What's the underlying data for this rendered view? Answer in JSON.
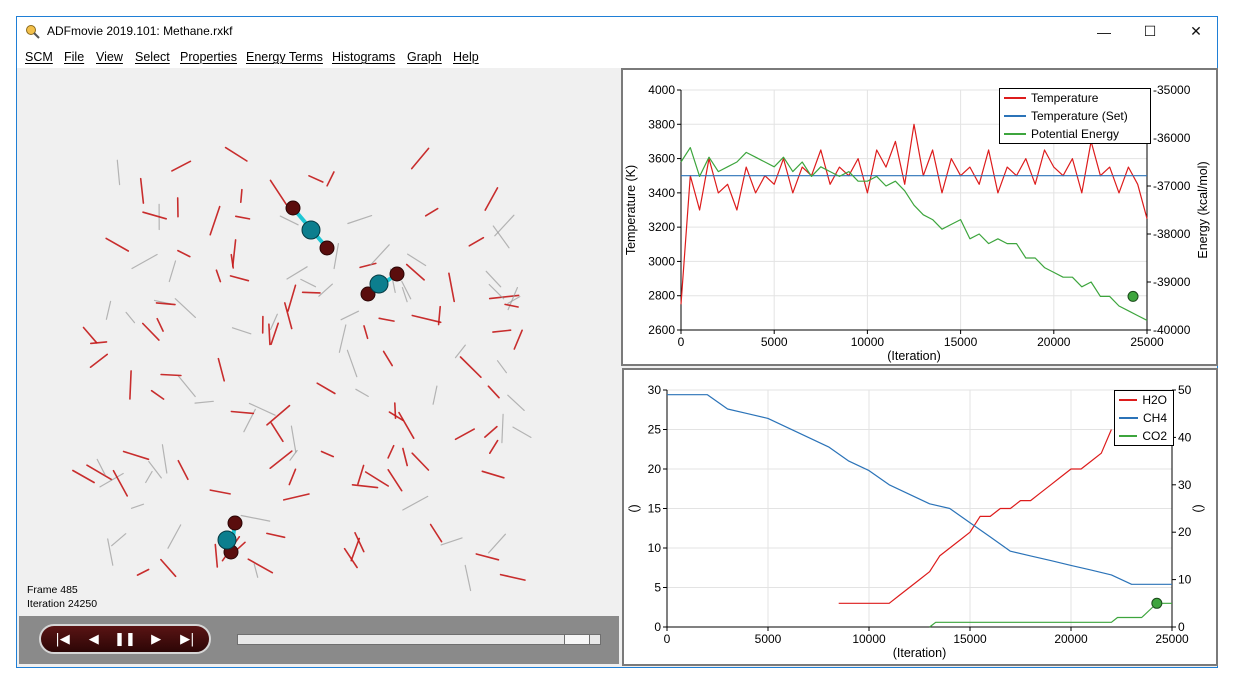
{
  "window": {
    "title": "ADFmovie 2019.101: Methane.rxkf",
    "minimize_glyph": "—",
    "maximize_glyph": "☐",
    "close_glyph": "✕"
  },
  "menu": [
    "SCM",
    "File",
    "View",
    "Select",
    "Properties",
    "Energy Terms",
    "Histograms",
    "Graph",
    "Help"
  ],
  "viewer": {
    "frame_label": "Frame 485",
    "iteration_label": "Iteration 24250"
  },
  "playback": {
    "buttons": [
      "first-frame",
      "previous-frame",
      "pause",
      "next-frame",
      "last-frame"
    ],
    "glyphs": [
      "|◀",
      "◀",
      "❚❚",
      "▶",
      "▶|"
    ],
    "position_fraction": 0.97
  },
  "colors": {
    "temperature": "#dd1c1c",
    "temperature_set": "#2b73b8",
    "potential_energy": "#3da53d",
    "h2o": "#dd1c1c",
    "ch4": "#2b73b8",
    "co2": "#3da53d",
    "accent": "#1f7fd6"
  },
  "chart_data": [
    {
      "type": "line",
      "xlabel": "(Iteration)",
      "ylabel": "Temperature (K)",
      "y2label": "Energy (kcal/mol)",
      "xlim": [
        0,
        25000
      ],
      "ylim": [
        2600,
        4000
      ],
      "y2lim": [
        -40000,
        -35000
      ],
      "x_ticks": [
        "0",
        "5000",
        "10000",
        "15000",
        "20000",
        "25000"
      ],
      "y_ticks": [
        "2600",
        "2800",
        "3000",
        "3200",
        "3400",
        "3600",
        "3800",
        "4000"
      ],
      "y2_ticks": [
        "-40000",
        "-39000",
        "-38000",
        "-37000",
        "-36000",
        "-35000"
      ],
      "legend_position": "top-right",
      "grid": true,
      "series": [
        {
          "name": "Temperature",
          "axis": "left",
          "x": [
            0,
            500,
            1000,
            1500,
            2000,
            2500,
            3000,
            3500,
            4000,
            4500,
            5000,
            5500,
            6000,
            6500,
            7000,
            7500,
            8000,
            8500,
            9000,
            9500,
            10000,
            10500,
            11000,
            11500,
            12000,
            12500,
            13000,
            13500,
            14000,
            14500,
            15000,
            15500,
            16000,
            16500,
            17000,
            17500,
            18000,
            18500,
            19000,
            19500,
            20000,
            20500,
            21000,
            21500,
            22000,
            22500,
            23000,
            23500,
            24000,
            24500,
            25000
          ],
          "values": [
            2750,
            3500,
            3300,
            3600,
            3400,
            3450,
            3300,
            3550,
            3400,
            3500,
            3450,
            3600,
            3400,
            3550,
            3500,
            3650,
            3450,
            3550,
            3500,
            3600,
            3400,
            3650,
            3550,
            3700,
            3450,
            3800,
            3500,
            3650,
            3400,
            3600,
            3500,
            3550,
            3450,
            3650,
            3400,
            3550,
            3500,
            3600,
            3450,
            3650,
            3550,
            3500,
            3600,
            3400,
            3700,
            3500,
            3550,
            3400,
            3550,
            3450,
            3250
          ]
        },
        {
          "name": "Temperature (Set)",
          "axis": "left",
          "x": [
            0,
            25000
          ],
          "values": [
            3500,
            3500
          ]
        },
        {
          "name": "Potential Energy",
          "axis": "right",
          "x": [
            0,
            500,
            1000,
            1500,
            2000,
            2500,
            3000,
            3500,
            4000,
            4500,
            5000,
            5500,
            6000,
            6500,
            7000,
            7500,
            8000,
            8500,
            9000,
            9500,
            10000,
            10500,
            11000,
            11500,
            12000,
            12500,
            13000,
            13500,
            14000,
            14500,
            15000,
            15500,
            16000,
            16500,
            17000,
            17500,
            18000,
            18500,
            19000,
            19500,
            20000,
            20500,
            21000,
            21500,
            22000,
            22500,
            23000,
            23500,
            24000,
            24500,
            25000
          ],
          "values": [
            -36500,
            -36200,
            -36800,
            -36400,
            -36700,
            -36600,
            -36500,
            -36300,
            -36400,
            -36500,
            -36600,
            -36400,
            -36700,
            -36500,
            -36800,
            -36600,
            -36700,
            -36800,
            -36700,
            -36900,
            -36900,
            -36800,
            -37000,
            -36900,
            -37100,
            -37400,
            -37600,
            -37700,
            -37900,
            -37800,
            -37700,
            -38100,
            -38000,
            -38200,
            -38100,
            -38200,
            -38200,
            -38500,
            -38500,
            -38700,
            -38800,
            -38900,
            -38900,
            -39100,
            -39000,
            -39300,
            -39300,
            -39500,
            -39600,
            -39700,
            -39800
          ]
        }
      ],
      "current_point": {
        "x": 24250,
        "y": -39300
      }
    },
    {
      "type": "line",
      "xlabel": "(Iteration)",
      "ylabel": "()",
      "y2label": "()",
      "xlim": [
        0,
        25000
      ],
      "ylim": [
        0,
        30
      ],
      "y2lim": [
        0,
        50
      ],
      "x_ticks": [
        "0",
        "5000",
        "10000",
        "15000",
        "20000",
        "25000"
      ],
      "y_ticks": [
        "0",
        "5",
        "10",
        "15",
        "20",
        "25",
        "30"
      ],
      "y2_ticks": [
        "0",
        "10",
        "20",
        "30",
        "40",
        "50"
      ],
      "legend_position": "top-right",
      "grid": true,
      "series": [
        {
          "name": "H2O",
          "axis": "left",
          "x": [
            8500,
            9000,
            9500,
            10000,
            10500,
            11000,
            11500,
            12000,
            12500,
            13000,
            13500,
            14000,
            14500,
            15000,
            15500,
            16000,
            16500,
            17000,
            17500,
            18000,
            18500,
            19000,
            19500,
            20000,
            20500,
            21000,
            21500,
            22000
          ],
          "values": [
            3,
            3,
            3,
            3,
            3,
            3,
            4,
            5,
            6,
            7,
            9,
            10,
            11,
            12,
            14,
            14,
            15,
            15,
            16,
            16,
            17,
            18,
            19,
            20,
            20,
            21,
            22,
            25
          ]
        },
        {
          "name": "CH4",
          "axis": "right",
          "x": [
            0,
            1000,
            2000,
            3000,
            4000,
            5000,
            6000,
            7000,
            8000,
            9000,
            10000,
            11000,
            12000,
            13000,
            14000,
            15000,
            16000,
            17000,
            18000,
            19000,
            20000,
            21000,
            22000,
            23000,
            24000,
            25000
          ],
          "values": [
            49,
            49,
            49,
            46,
            45,
            44,
            42,
            40,
            38,
            35,
            33,
            30,
            28,
            26,
            25,
            22,
            19,
            16,
            15,
            14,
            13,
            12,
            11,
            9,
            9,
            9
          ]
        },
        {
          "name": "CO2",
          "axis": "right",
          "x": [
            13000,
            13300,
            21000,
            22000,
            22300,
            23500,
            24000,
            24250,
            25000
          ],
          "values": [
            0,
            1,
            1,
            1,
            2,
            2,
            4,
            5,
            5
          ]
        }
      ],
      "current_point": {
        "x": 24250,
        "y": 3
      }
    }
  ]
}
